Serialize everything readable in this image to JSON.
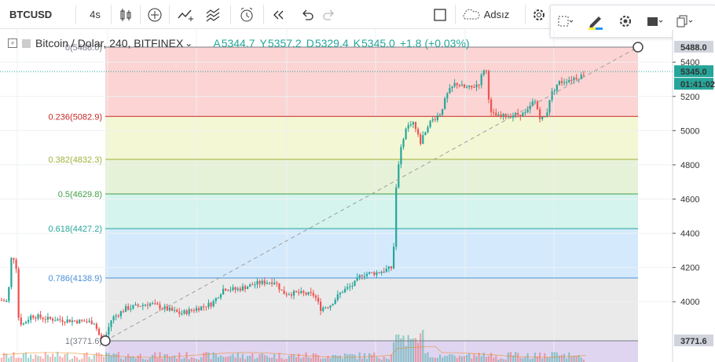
{
  "toolbar": {
    "symbol": "BTCUSD",
    "interval": "4s",
    "indicators_icon": "candles-icon",
    "compare_icon": "plus-circle-icon",
    "layout_label": "Adsız",
    "items_icons": [
      "candles-icon",
      "plus-circle-icon",
      "indicators-icon",
      "templates-icon",
      "alarm-icon",
      "replay-icon",
      "undo-icon",
      "redo-icon",
      "square-icon",
      "cloud-icon",
      "gear-icon"
    ]
  },
  "floating_toolbar": {
    "icons": [
      "selection-icon",
      "pencil-icon",
      "gear-icon",
      "fill-icon",
      "clone-icon"
    ],
    "pencil_colors": [
      "#ffeb3b",
      "#2196f3"
    ]
  },
  "legend": {
    "title": "Bitcoin / Dolar, 240, BITFINEX",
    "chevron": "⌄",
    "o_label": "A",
    "o_value": "5344.7",
    "h_label": "Y",
    "h_value": "5357.2",
    "l_label": "D",
    "l_value": "5329.4",
    "c_label": "K",
    "c_value": "5345.0",
    "change": "+1.8 (+0.03%)"
  },
  "chart_data": {
    "type": "candlestick",
    "title": "Bitcoin / Dolar, 240, BITFINEX",
    "ylim": [
      3700,
      5560
    ],
    "y_ticks": [
      4000,
      4200,
      4400,
      4600,
      4800,
      5000,
      5200,
      5400
    ],
    "price_labels": {
      "fib_high": "5488.0",
      "last": "5345.0",
      "countdown": "01:41:02",
      "fib_low": "3771.6"
    },
    "colors": {
      "up": "#26a69a",
      "down": "#ef5350",
      "last_line": "#26a69a"
    },
    "fibonacci": {
      "levels": [
        {
          "ratio": 0,
          "label": "0(5488.0)",
          "price": 5488.0,
          "color": "#787b86",
          "fill": "rgba(239,83,80,0.25)"
        },
        {
          "ratio": 0.236,
          "label": "0.236(5082.9)",
          "price": 5082.9,
          "color": "#c62828",
          "fill": "rgba(205,220,57,0.22)"
        },
        {
          "ratio": 0.382,
          "label": "0.382(4832.3)",
          "price": 4832.3,
          "color": "#9fb23a",
          "fill": "rgba(139,195,74,0.22)"
        },
        {
          "ratio": 0.5,
          "label": "0.5(4629.8)",
          "price": 4629.8,
          "color": "#43a047",
          "fill": "rgba(38,198,166,0.20)"
        },
        {
          "ratio": 0.618,
          "label": "0.618(4427.2)",
          "price": 4427.2,
          "color": "#26a69a",
          "fill": "rgba(100,181,246,0.28)"
        },
        {
          "ratio": 0.786,
          "label": "0.786(4138.9)",
          "price": 4138.9,
          "color": "#4a90d9",
          "fill": "rgba(158,158,158,0.22)"
        },
        {
          "ratio": 1,
          "label": "1(3771.6)",
          "price": 3771.6,
          "color": "#787b86",
          "fill": "rgba(126,87,194,0.25)"
        }
      ]
    },
    "trend_line": {
      "start_price": 3771.6,
      "end_price": 5488.0
    }
  }
}
